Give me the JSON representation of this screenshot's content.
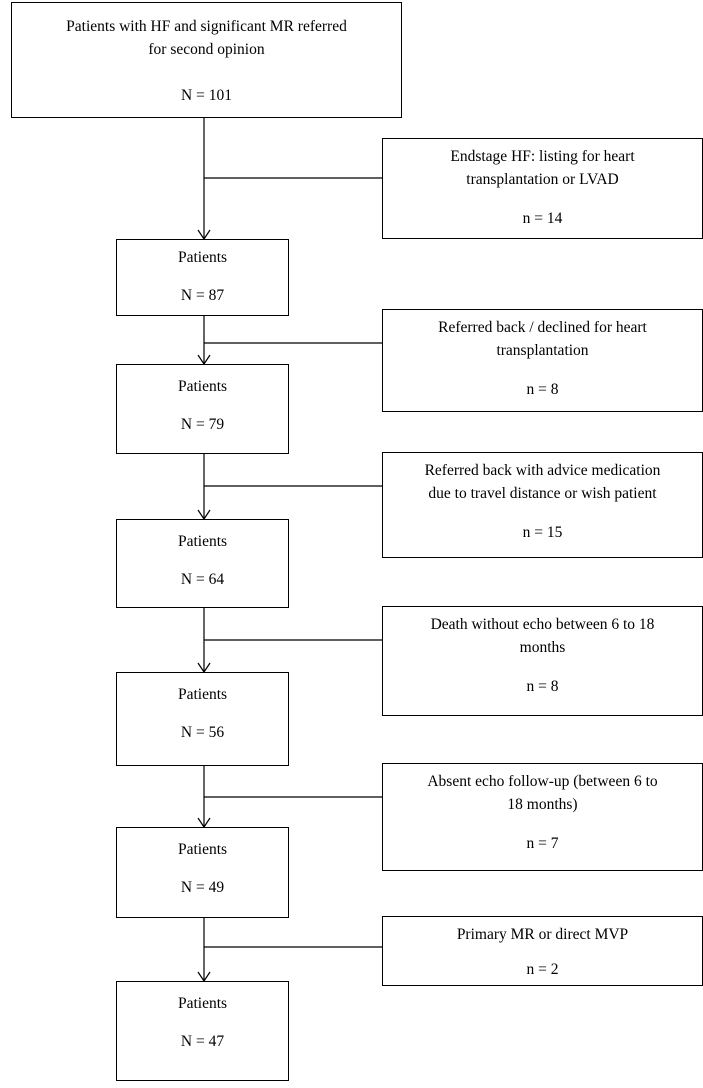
{
  "flowchart": {
    "top": {
      "title_line1": "Patients with HF and significant MR referred",
      "title_line2": "for second opinion",
      "count": "N = 101"
    },
    "main_boxes": [
      {
        "label": "Patients",
        "count": "N = 87"
      },
      {
        "label": "Patients",
        "count": "N = 79"
      },
      {
        "label": "Patients",
        "count": "N = 64"
      },
      {
        "label": "Patients",
        "count": "N = 56"
      },
      {
        "label": "Patients",
        "count": "N = 49"
      },
      {
        "label": "Patients",
        "count": "N = 47"
      }
    ],
    "exclusions": [
      {
        "line1": "Endstage HF: listing for heart",
        "line2": "transplantation or LVAD",
        "count": "n = 14"
      },
      {
        "line1": "Referred back / declined for heart",
        "line2": "transplantation",
        "count": "n = 8"
      },
      {
        "line1": "Referred back with advice medication",
        "line2": "due to travel distance or wish patient",
        "count": "n = 15"
      },
      {
        "line1": "Death without echo between 6 to 18",
        "line2": "months",
        "count": "n = 8"
      },
      {
        "line1": "Absent echo follow-up (between 6 to",
        "line2": "18 months)",
        "count": "n = 7"
      },
      {
        "line1": "Primary MR or direct MVP",
        "line2": "",
        "count": "n = 2"
      }
    ]
  }
}
